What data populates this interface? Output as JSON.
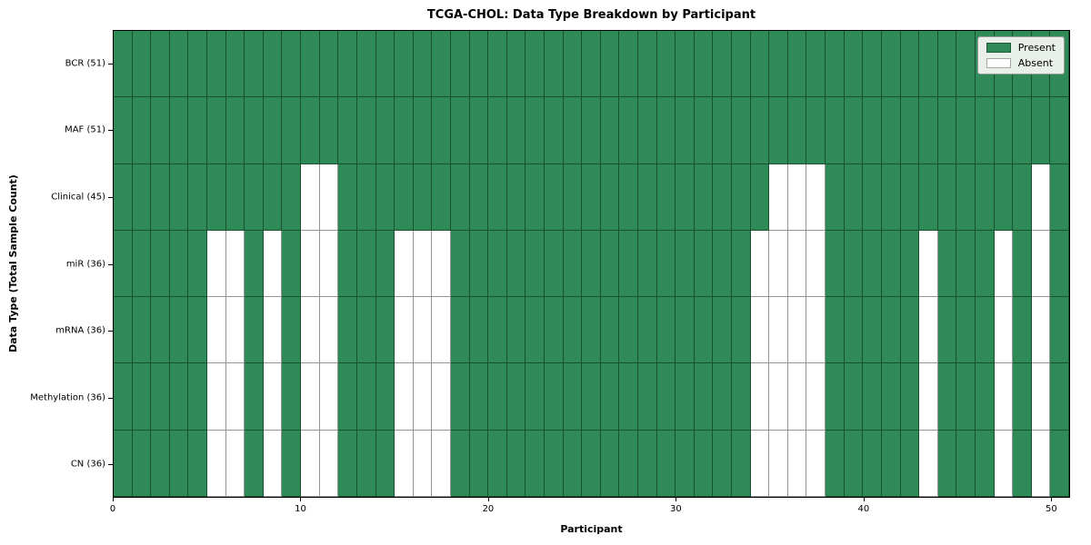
{
  "chart_data": {
    "type": "heatmap",
    "title": "TCGA-CHOL: Data Type Breakdown by Participant",
    "xlabel": "Participant",
    "ylabel": "Data Type (Total Sample Count)",
    "n_participants": 51,
    "x_range": [
      0,
      51
    ],
    "x_ticks": [
      0,
      10,
      20,
      30,
      40,
      50
    ],
    "legend_position": "upper-right",
    "grid": true,
    "rows": [
      {
        "label": "BCR (51)",
        "total": 51,
        "absent_participants": []
      },
      {
        "label": "MAF (51)",
        "total": 51,
        "absent_participants": []
      },
      {
        "label": "Clinical (45)",
        "total": 45,
        "absent_participants": [
          10,
          11,
          35,
          36,
          37,
          49
        ]
      },
      {
        "label": "miR (36)",
        "total": 36,
        "absent_participants": [
          5,
          6,
          8,
          10,
          11,
          15,
          16,
          17,
          34,
          35,
          36,
          37,
          43,
          47,
          49
        ]
      },
      {
        "label": "mRNA (36)",
        "total": 36,
        "absent_participants": [
          5,
          6,
          8,
          10,
          11,
          15,
          16,
          17,
          34,
          35,
          36,
          37,
          43,
          47,
          49
        ]
      },
      {
        "label": "Methylation (36)",
        "total": 36,
        "absent_participants": [
          5,
          6,
          8,
          10,
          11,
          15,
          16,
          17,
          34,
          35,
          36,
          37,
          43,
          47,
          49
        ]
      },
      {
        "label": "CN (36)",
        "total": 36,
        "absent_participants": [
          5,
          6,
          8,
          10,
          11,
          15,
          16,
          17,
          34,
          35,
          36,
          37,
          43,
          47,
          49
        ]
      }
    ],
    "legend": [
      {
        "label": "Present",
        "color": "#2e8b57"
      },
      {
        "label": "Absent",
        "color": "#ffffff"
      }
    ],
    "colors": {
      "present": "#2e8b57",
      "absent": "#ffffff",
      "cell_edge": "rgba(0,0,0,0.42)",
      "spine": "#000000"
    }
  }
}
